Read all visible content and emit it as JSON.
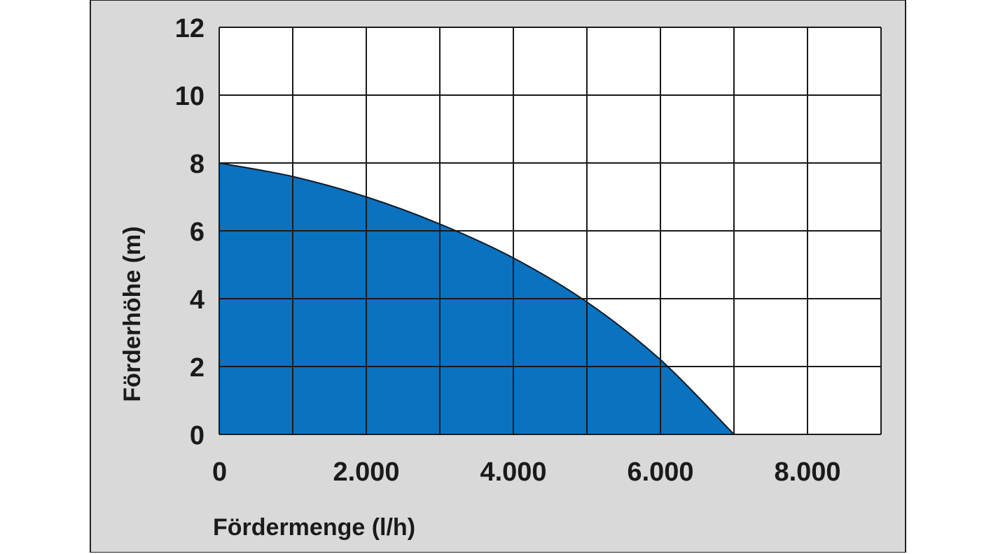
{
  "chart_data": {
    "type": "area",
    "xlabel": "Fördermenge (l/h)",
    "ylabel": "Förderhöhe (m)",
    "xlim": [
      0,
      9000
    ],
    "ylim": [
      0,
      12
    ],
    "x_ticks": [
      0,
      2000,
      4000,
      6000,
      8000
    ],
    "x_tick_labels": [
      "0",
      "2.000",
      "4.000",
      "6.000",
      "8.000"
    ],
    "y_ticks": [
      0,
      2,
      4,
      6,
      8,
      10,
      12
    ],
    "y_tick_labels": [
      "0",
      "2",
      "4",
      "6",
      "8",
      "10",
      "12"
    ],
    "x_grid_step": 1000,
    "y_grid_step": 2,
    "grid": true,
    "fill_color": "#0a72bf",
    "series": [
      {
        "x": [
          0,
          1000,
          2000,
          3000,
          4000,
          5000,
          6000,
          7000
        ],
        "y": [
          8,
          7.6,
          7.0,
          6.2,
          5.2,
          3.9,
          2.2,
          0
        ]
      }
    ]
  }
}
